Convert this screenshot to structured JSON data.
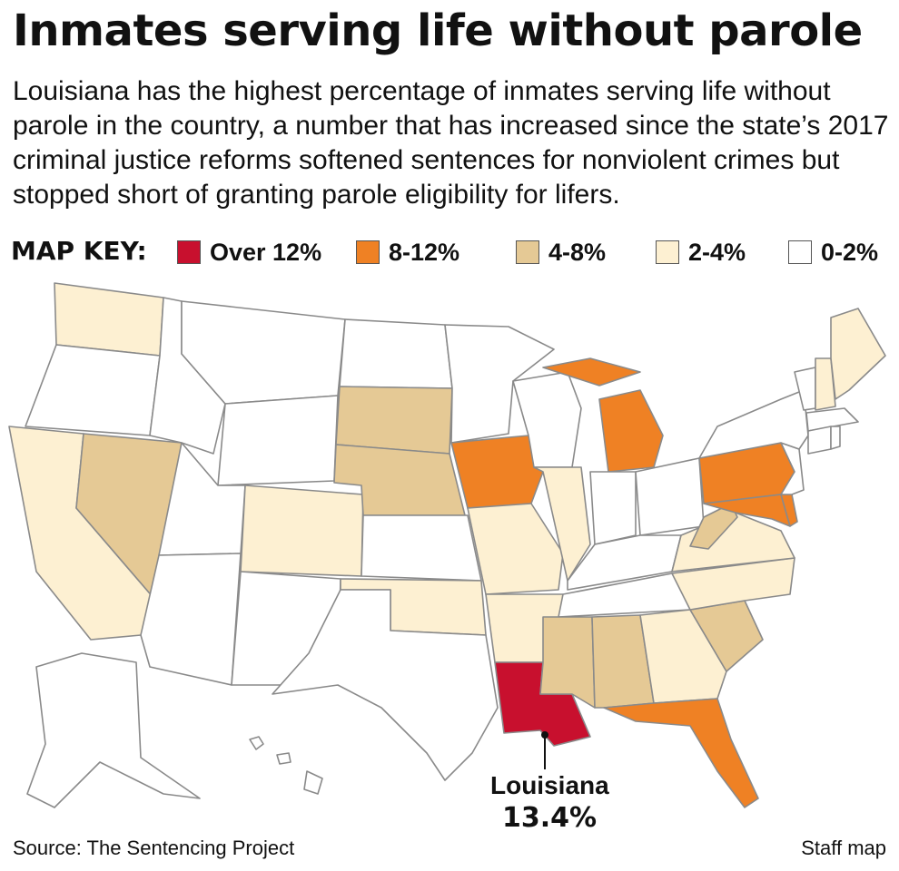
{
  "title": "Inmates serving life without parole",
  "subtitle": "Louisiana has the highest percentage of inmates serving life without parole in the country, a number that has increased since the state’s 2017 criminal justice reforms softened sentences for nonviolent crimes but stopped short of granting parole eligibility for lifers.",
  "key": {
    "title": "MAP KEY:",
    "items": [
      {
        "label": "Over 12%",
        "color": "#c8102e"
      },
      {
        "label": "8-12%",
        "color": "#ef8124"
      },
      {
        "label": "4-8%",
        "color": "#e5c995"
      },
      {
        "label": "2-4%",
        "color": "#fdf0d2"
      },
      {
        "label": "0-2%",
        "color": "#ffffff"
      }
    ]
  },
  "map": {
    "category_colors": {
      "over_12": "#c8102e",
      "8_12": "#ef8124",
      "4_8": "#e5c995",
      "2_4": "#fdf0d2",
      "0_2": "#ffffff"
    },
    "states": {
      "over_12": [
        "Louisiana"
      ],
      "8_12": [
        "Michigan",
        "Iowa",
        "Pennsylvania",
        "Maryland",
        "Delaware",
        "Florida"
      ],
      "4_8": [
        "Nevada",
        "South Dakota",
        "Nebraska",
        "West Virginia",
        "Mississippi",
        "Alabama",
        "South Carolina"
      ],
      "2_4": [
        "Washington",
        "California",
        "Colorado",
        "Oklahoma",
        "Missouri",
        "Arkansas",
        "Illinois",
        "Virginia",
        "North Carolina",
        "Georgia",
        "Maine",
        "New Hampshire"
      ],
      "0_2": [
        "Oregon",
        "Idaho",
        "Montana",
        "Wyoming",
        "Utah",
        "Arizona",
        "New Mexico",
        "Texas",
        "North Dakota",
        "Kansas",
        "Minnesota",
        "Wisconsin",
        "Indiana",
        "Ohio",
        "Kentucky",
        "Tennessee",
        "New York",
        "Vermont",
        "Massachusetts",
        "Connecticut",
        "Rhode Island",
        "New Jersey",
        "Alaska",
        "Hawaii"
      ]
    }
  },
  "callout": {
    "state": "Louisiana",
    "value": "13.4%"
  },
  "source": "Source: The Sentencing Project",
  "credit": "Staff map"
}
